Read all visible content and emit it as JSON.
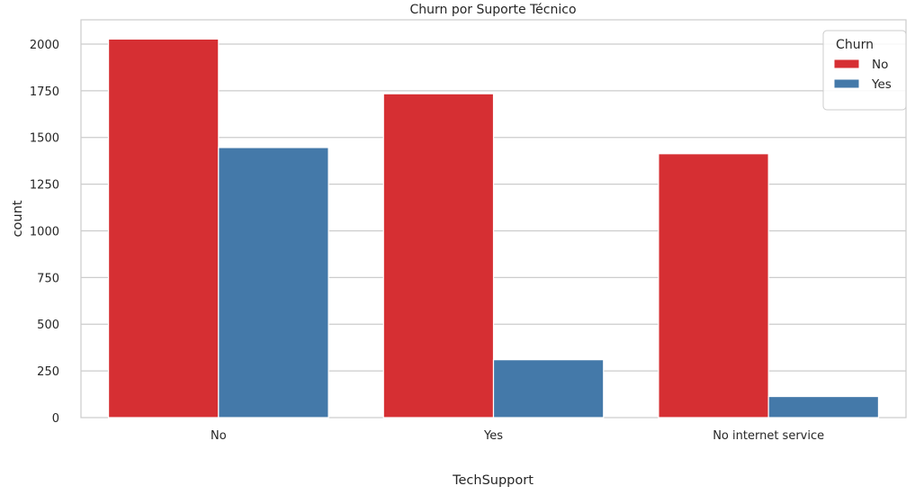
{
  "chart_data": {
    "type": "bar",
    "title": "Churn por Suporte Técnico",
    "xlabel": "TechSupport",
    "ylabel": "count",
    "categories": [
      "No",
      "Yes",
      "No internet service"
    ],
    "series": [
      {
        "name": "No",
        "color": "#d62f33",
        "values": [
          2027,
          1734,
          1413
        ]
      },
      {
        "name": "Yes",
        "color": "#4479a9",
        "values": [
          1446,
          310,
          113
        ]
      }
    ],
    "ylim": [
      0,
      2130
    ],
    "yticks": [
      0,
      250,
      500,
      750,
      1000,
      1250,
      1500,
      1750,
      2000
    ],
    "grid": true,
    "legend": {
      "title": "Churn",
      "placement": "top-right"
    }
  }
}
